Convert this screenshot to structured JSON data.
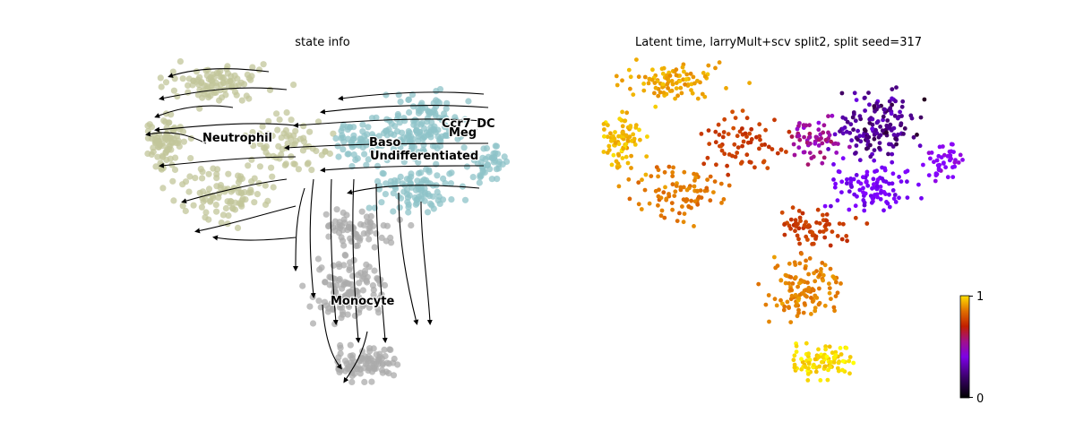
{
  "chart_data": [
    {
      "type": "scatter",
      "title": "state info",
      "legend_placement": "on data",
      "colors": {
        "Neutrophil": "#c2c59a",
        "Baso": "#8ec3c8",
        "Ccr7_DC": "#8ec3c8",
        "Meg": "#8ec3c8",
        "Undifferentiated": "#8ec3c8",
        "Monocyte": "#ababab",
        "stream": "#000000"
      },
      "labels": [
        {
          "text": "Neutrophil"
        },
        {
          "text": "Baso"
        },
        {
          "text": "Ccr7_DC"
        },
        {
          "text": "Meg"
        },
        {
          "text": "Undifferentiated"
        },
        {
          "text": "Monocyte"
        }
      ]
    },
    {
      "type": "scatter",
      "title": "Latent time, larryMult+scv split2, split seed=317",
      "colormap": "gnuplot",
      "colorbar": {
        "min_label": "0",
        "max_label": "1",
        "range": [
          0,
          1
        ]
      }
    }
  ]
}
